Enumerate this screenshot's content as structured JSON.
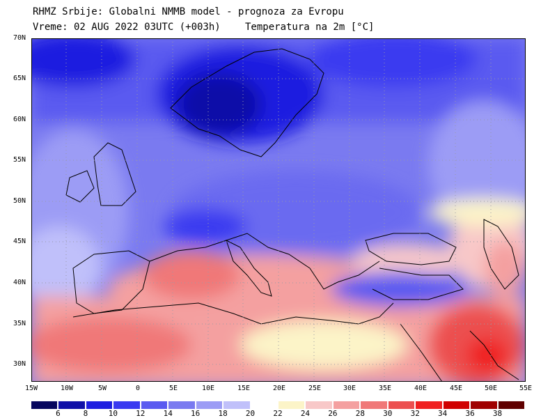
{
  "header": {
    "line1": "RHMZ Srbije: Globalni NMMB model - prognoza za Evropu",
    "line2": "Vreme: 02 AUG 2022 03UTC (+003h)",
    "line2b": "Temperatura na 2m [°C]"
  },
  "axes": {
    "lat_labels": [
      "70N",
      "65N",
      "60N",
      "55N",
      "50N",
      "45N",
      "40N",
      "35N",
      "30N"
    ],
    "lon_labels": [
      "15W",
      "10W",
      "5W",
      "0",
      "5E",
      "10E",
      "15E",
      "20E",
      "25E",
      "30E",
      "35E",
      "40E",
      "45E",
      "50E",
      "55E"
    ]
  },
  "legend": {
    "levels": [
      "6",
      "8",
      "10",
      "12",
      "14",
      "16",
      "18",
      "20",
      "22",
      "24",
      "26",
      "28",
      "30",
      "32",
      "34",
      "36",
      "38"
    ],
    "colors": [
      "#07075e",
      "#1010a8",
      "#1e1ee0",
      "#3a3af0",
      "#5a5af0",
      "#7a7af0",
      "#9c9cf5",
      "#c0c0fa",
      "#ffffff",
      "#fcf4c8",
      "#f8c8c8",
      "#f4a0a0",
      "#f07878",
      "#ec5050",
      "#f02020",
      "#d00000",
      "#a00000",
      "#600000"
    ]
  },
  "map": {
    "grid": "on",
    "lon_range": [
      -15,
      55
    ],
    "lat_range": [
      28,
      70
    ]
  }
}
